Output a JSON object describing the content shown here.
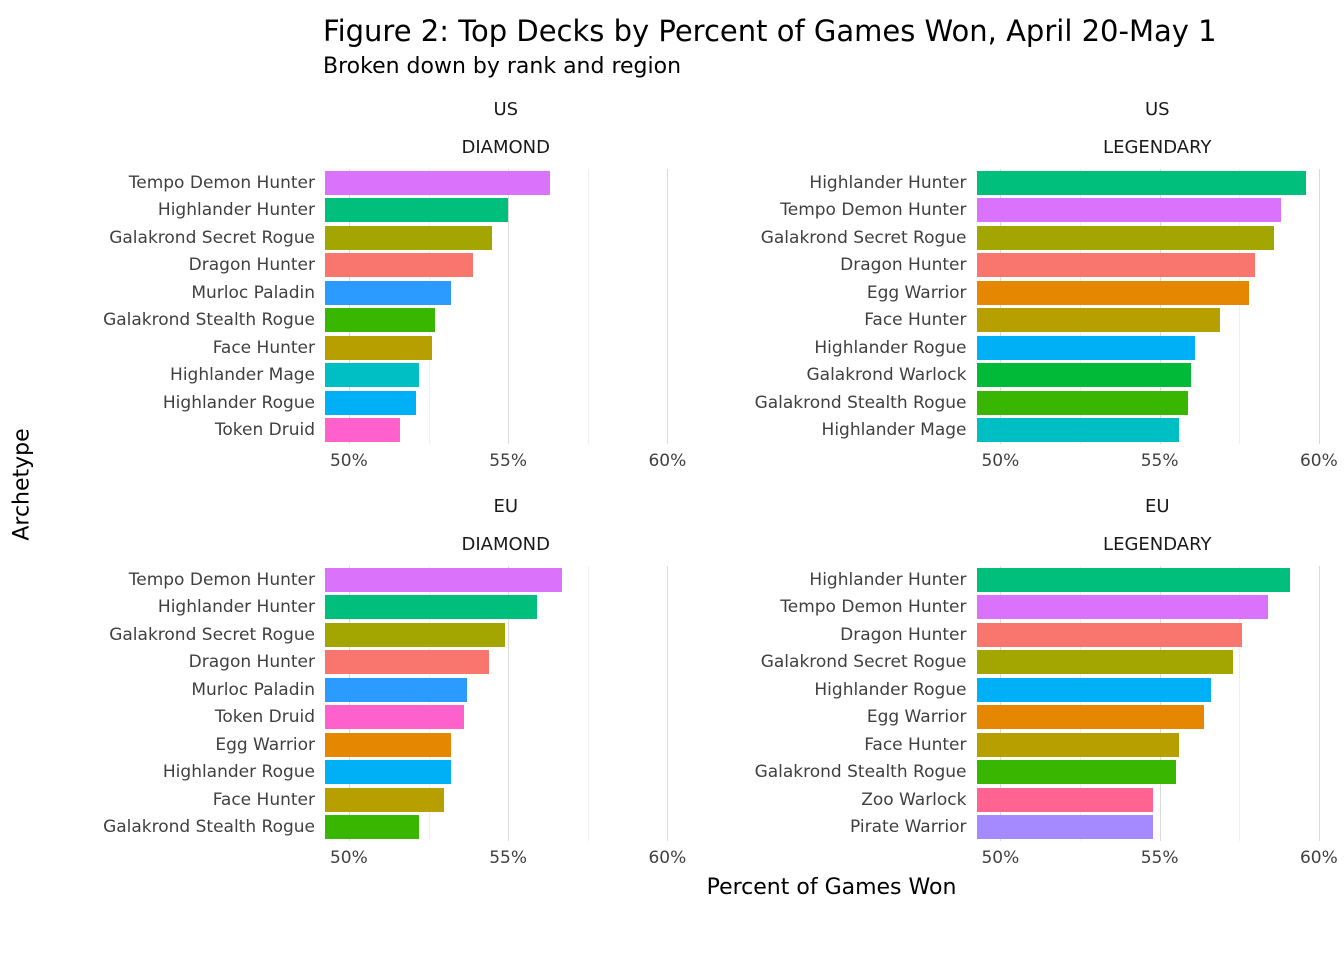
{
  "chart_data": {
    "type": "bar",
    "orientation": "horizontal",
    "title": "Figure 2: Top Decks by Percent of Games Won, April 20-May 1",
    "subtitle": "Broken down by rank and region",
    "xlabel": "Percent of Games Won",
    "ylabel": "Archetype",
    "legend": "none",
    "grid": "vertical-only",
    "x_axis": {
      "min": 49.25,
      "max": 60.6,
      "ticks": [
        50,
        55,
        60
      ],
      "tick_labels": [
        "50%",
        "55%",
        "60%"
      ],
      "minor_ticks": [
        52.5,
        57.5
      ]
    },
    "colors": {
      "Tempo Demon Hunter": "#DB72FB",
      "Highlander Hunter": "#00BF7D",
      "Galakrond Secret Rogue": "#A3A500",
      "Dragon Hunter": "#F8766D",
      "Murloc Paladin": "#2B9BFF",
      "Galakrond Stealth Rogue": "#39B600",
      "Face Hunter": "#B79F00",
      "Highlander Mage": "#00BFC4",
      "Highlander Rogue": "#00B0F6",
      "Token Druid": "#FF61CC",
      "Egg Warrior": "#E58700",
      "Galakrond Warlock": "#00BA38",
      "Zoo Warlock": "#FF6392",
      "Pirate Warrior": "#A58AFF"
    },
    "facets": [
      {
        "region": "US",
        "rank": "DIAMOND",
        "categories": [
          "Tempo Demon Hunter",
          "Highlander Hunter",
          "Galakrond Secret Rogue",
          "Dragon Hunter",
          "Murloc Paladin",
          "Galakrond Stealth Rogue",
          "Face Hunter",
          "Highlander Mage",
          "Highlander Rogue",
          "Token Druid"
        ],
        "values": [
          56.3,
          55.0,
          54.5,
          53.9,
          53.2,
          52.7,
          52.6,
          52.2,
          52.1,
          51.6
        ]
      },
      {
        "region": "US",
        "rank": "LEGENDARY",
        "categories": [
          "Highlander Hunter",
          "Tempo Demon Hunter",
          "Galakrond Secret Rogue",
          "Dragon Hunter",
          "Egg Warrior",
          "Face Hunter",
          "Highlander Rogue",
          "Galakrond Warlock",
          "Galakrond Stealth Rogue",
          "Highlander Mage"
        ],
        "values": [
          59.6,
          58.8,
          58.6,
          58.0,
          57.8,
          56.9,
          56.1,
          56.0,
          55.9,
          55.6
        ]
      },
      {
        "region": "EU",
        "rank": "DIAMOND",
        "categories": [
          "Tempo Demon Hunter",
          "Highlander Hunter",
          "Galakrond Secret Rogue",
          "Dragon Hunter",
          "Murloc Paladin",
          "Token Druid",
          "Egg Warrior",
          "Highlander Rogue",
          "Face Hunter",
          "Galakrond Stealth Rogue"
        ],
        "values": [
          56.7,
          55.9,
          54.9,
          54.4,
          53.7,
          53.6,
          53.2,
          53.2,
          53.0,
          52.2
        ]
      },
      {
        "region": "EU",
        "rank": "LEGENDARY",
        "categories": [
          "Highlander Hunter",
          "Tempo Demon Hunter",
          "Dragon Hunter",
          "Galakrond Secret Rogue",
          "Highlander Rogue",
          "Egg Warrior",
          "Face Hunter",
          "Galakrond Stealth Rogue",
          "Zoo Warlock",
          "Pirate Warrior"
        ],
        "values": [
          59.1,
          58.4,
          57.6,
          57.3,
          56.6,
          56.4,
          55.6,
          55.5,
          54.8,
          54.8
        ]
      }
    ]
  }
}
